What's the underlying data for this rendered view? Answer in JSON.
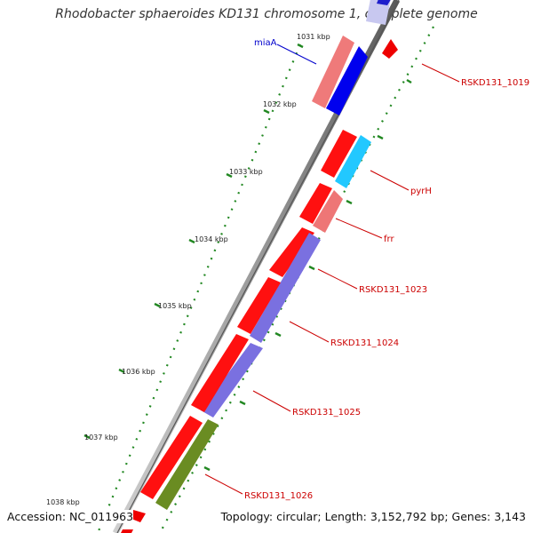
{
  "title": "Rhodobacter sphaeroides KD131 chromosome 1, complete genome",
  "footer": {
    "accession": "Accession: NC_011963",
    "topology": "Topology: circular; Length: 3,152,792 bp; Genes: 3,143"
  },
  "ticks": [
    "1031 kbp",
    "1032 kbp",
    "1033 kbp",
    "1034 kbp",
    "1035 kbp",
    "1036 kbp",
    "1037 kbp",
    "1038 kbp"
  ],
  "gene_labels": {
    "miaA": "miaA",
    "rskd1019": "RSKD131_1019",
    "pyrH": "pyrH",
    "frr": "frr",
    "rskd1023": "RSKD131_1023",
    "rskd1024": "RSKD131_1024",
    "rskd1025": "RSKD131_1025",
    "rskd1026": "RSKD131_1026"
  },
  "colors": {
    "cds": "#ff0000",
    "cds_light": "#f08080",
    "mia": "#0000ee",
    "pyr": "#22c8ff",
    "purple": "#7a70e0",
    "olive": "#6a8c22",
    "pale": "#c8c8f0",
    "label_red": "#cc0000",
    "label_blue": "#0000cc",
    "tick_green": "#228822"
  }
}
